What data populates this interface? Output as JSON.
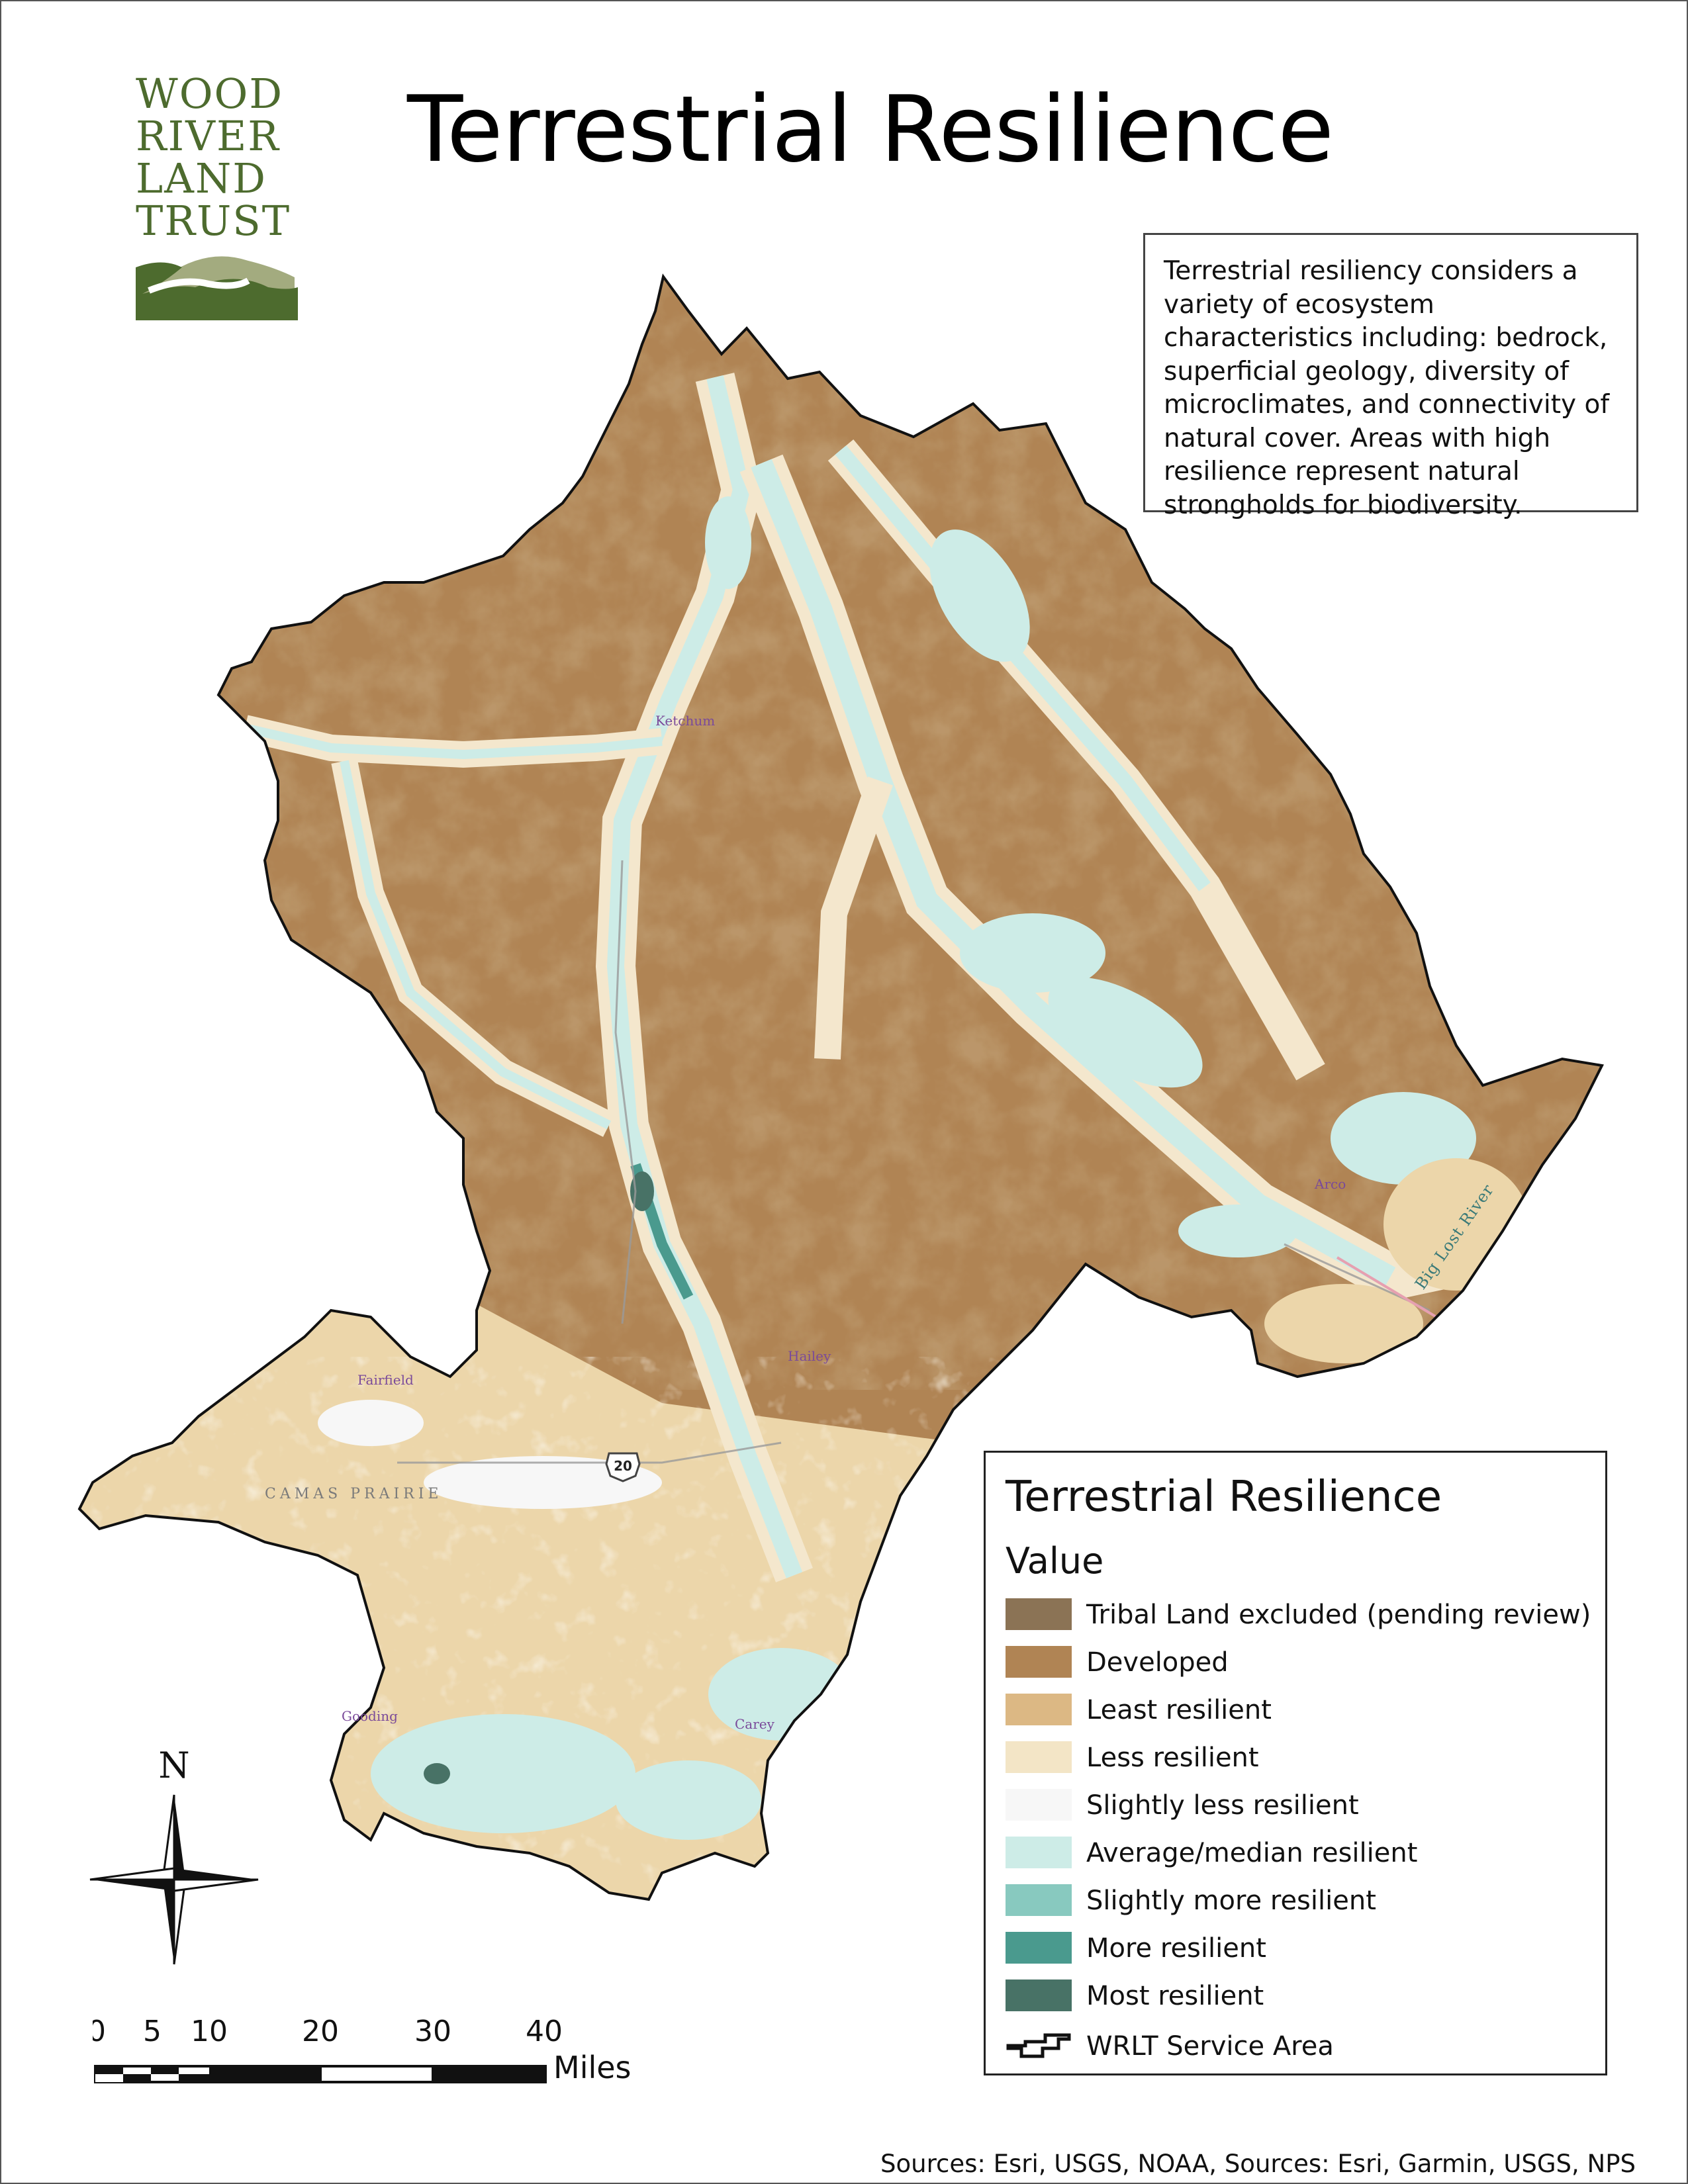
{
  "title": "Terrestrial Resilience",
  "logo": {
    "lines": [
      "WOOD",
      "RIVER",
      "LAND",
      "TRUST"
    ]
  },
  "description": "Terrestrial resiliency considers a variety of ecosystem characteristics including: bedrock, superficial geology, diversity of microclimates, and connectivity of natural cover. Areas with high resilience represent natural strongholds for biodiversity.",
  "legend": {
    "title": "Terrestrial Resilience",
    "subtitle": "Value",
    "items": [
      {
        "label": "Tribal Land excluded (pending review)",
        "color": "#8b7355"
      },
      {
        "label": "Developed",
        "color": "#b08454"
      },
      {
        "label": "Least resilient",
        "color": "#dcb884"
      },
      {
        "label": "Less resilient",
        "color": "#f3e5c6"
      },
      {
        "label": "Slightly less resilient",
        "color": "#f7f7f7"
      },
      {
        "label": "Average/median resilient",
        "color": "#cdece7"
      },
      {
        "label": "Slightly more resilient",
        "color": "#88c9bf"
      },
      {
        "label": "More resilient",
        "color": "#4a9a8e"
      },
      {
        "label": "Most resilient",
        "color": "#487266"
      }
    ],
    "boundary_label": "WRLT Service Area"
  },
  "north_label": "N",
  "scale": {
    "ticks": [
      "0",
      "5",
      "10",
      "20",
      "30",
      "40"
    ],
    "unit": "Miles"
  },
  "map_labels": {
    "camas_prairie": "CAMAS PRAIRIE",
    "big_lost_river": "Big Lost River",
    "highway": "20",
    "towns": [
      "Hailey",
      "Ketchum",
      "Carey",
      "Gooding",
      "Fairfield",
      "Arco"
    ]
  },
  "sources": "Sources: Esri, USGS, NOAA, Sources: Esri, Garmin, USGS, NPS",
  "colors": {
    "logo_green": "#4d6b2e"
  }
}
